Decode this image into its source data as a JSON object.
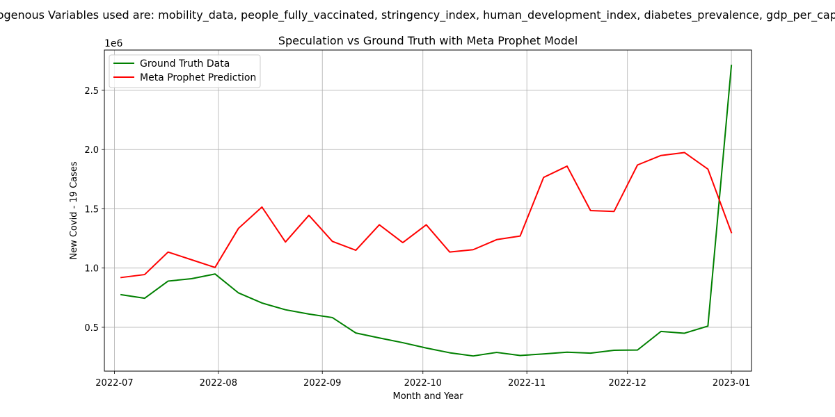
{
  "suptitle": "Exogenous Variables used are: mobility_data, people_fully_vaccinated, stringency_index, human_development_index, diabetes_prevalence, gdp_per_capita",
  "chart_data": {
    "type": "line",
    "title": "Speculation vs Ground Truth with Meta Prophet Model",
    "xlabel": "Month and Year",
    "ylabel": "New Covid - 19 Cases",
    "y_offset_label": "1e6",
    "x_range": [
      "2022-06-28",
      "2023-01-07"
    ],
    "ylim": [
      130000,
      2840000
    ],
    "grid": true,
    "legend_position": "upper-left",
    "x_ticks": [
      {
        "date": "2022-07-01",
        "label": "2022-07"
      },
      {
        "date": "2022-08-01",
        "label": "2022-08"
      },
      {
        "date": "2022-09-01",
        "label": "2022-09"
      },
      {
        "date": "2022-10-01",
        "label": "2022-10"
      },
      {
        "date": "2022-11-01",
        "label": "2022-11"
      },
      {
        "date": "2022-12-01",
        "label": "2022-12"
      },
      {
        "date": "2023-01-01",
        "label": "2023-01"
      }
    ],
    "y_ticks": [
      {
        "value": 500000,
        "label": "0.5"
      },
      {
        "value": 1000000,
        "label": "1.0"
      },
      {
        "value": 1500000,
        "label": "1.5"
      },
      {
        "value": 2000000,
        "label": "2.0"
      },
      {
        "value": 2500000,
        "label": "2.5"
      }
    ],
    "x": [
      "2022-07-03",
      "2022-07-10",
      "2022-07-17",
      "2022-07-24",
      "2022-07-31",
      "2022-08-07",
      "2022-08-14",
      "2022-08-21",
      "2022-08-28",
      "2022-09-04",
      "2022-09-11",
      "2022-09-18",
      "2022-09-25",
      "2022-10-02",
      "2022-10-09",
      "2022-10-16",
      "2022-10-23",
      "2022-10-30",
      "2022-11-06",
      "2022-11-13",
      "2022-11-20",
      "2022-11-27",
      "2022-12-04",
      "2022-12-11",
      "2022-12-18",
      "2022-12-25",
      "2023-01-01"
    ],
    "series": [
      {
        "name": "Ground Truth Data",
        "color": "#008000",
        "values": [
          775000,
          745000,
          890000,
          910000,
          950000,
          790000,
          705000,
          648000,
          612000,
          582000,
          452000,
          410000,
          370000,
          325000,
          285000,
          258000,
          288000,
          262000,
          275000,
          290000,
          282000,
          306000,
          308000,
          465000,
          450000,
          510000,
          2710000
        ]
      },
      {
        "name": "Meta Prophet Prediction",
        "color": "#ff0000",
        "values": [
          920000,
          945000,
          1135000,
          1070000,
          1005000,
          1335000,
          1515000,
          1220000,
          1445000,
          1225000,
          1150000,
          1365000,
          1215000,
          1365000,
          1135000,
          1155000,
          1240000,
          1270000,
          1765000,
          1860000,
          1485000,
          1478000,
          1870000,
          1950000,
          1975000,
          1835000,
          1300000
        ]
      }
    ]
  }
}
